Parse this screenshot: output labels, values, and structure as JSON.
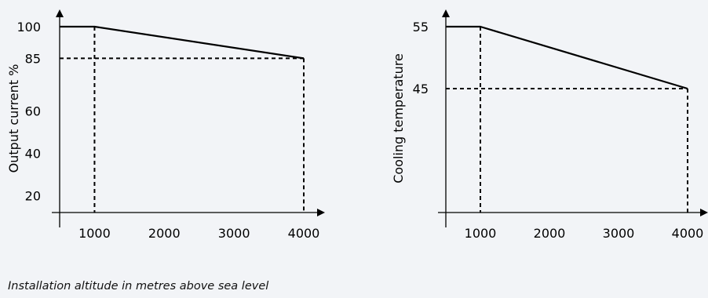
{
  "caption": "Installation altitude in metres above sea level",
  "colors": {
    "background": "#f2f4f7",
    "ink": "#000000"
  },
  "chart_data": [
    {
      "type": "line",
      "title": "",
      "xlabel": "",
      "ylabel": "Output current %",
      "x_ticks": [
        "1000",
        "2000",
        "3000",
        "4000"
      ],
      "y_ticks": [
        "20",
        "40",
        "60",
        "85",
        "100"
      ],
      "xlim": [
        500,
        4000
      ],
      "ylim": [
        12,
        100
      ],
      "grid": false,
      "series": [
        {
          "x": [
            500,
            1000,
            4000
          ],
          "y": [
            100,
            100,
            85
          ]
        }
      ],
      "guides": [
        {
          "x": 1000,
          "y": 100
        },
        {
          "x": 4000,
          "y": 85
        }
      ]
    },
    {
      "type": "line",
      "title": "",
      "xlabel": "",
      "ylabel": "Cooling temperature",
      "x_ticks": [
        "1000",
        "2000",
        "3000",
        "4000"
      ],
      "y_ticks": [
        "45",
        "55"
      ],
      "xlim": [
        500,
        4000
      ],
      "ylim": [
        25,
        55
      ],
      "grid": false,
      "series": [
        {
          "x": [
            500,
            1000,
            4000
          ],
          "y": [
            55,
            55,
            45
          ]
        }
      ],
      "guides": [
        {
          "x": 1000,
          "y": 55
        },
        {
          "x": 4000,
          "y": 45
        }
      ]
    }
  ]
}
